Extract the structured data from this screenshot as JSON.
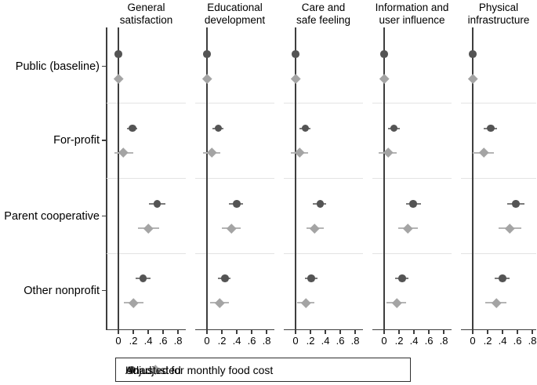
{
  "chart_data": {
    "type": "scatter",
    "subtype": "coefficient-forest-plot",
    "title": "",
    "xlabel": "",
    "ylabel": "",
    "grid": false,
    "legend_position": "bottom",
    "x_ticks": [
      0,
      0.2,
      0.4,
      0.6,
      0.8
    ],
    "x_tick_labels": [
      "0",
      ".2",
      ".4",
      ".6",
      ".8"
    ],
    "xlim": [
      -0.16,
      0.9
    ],
    "axis_color": "#3e3e3e",
    "separator_color": "#e3e3e3",
    "groups": [
      "Public (baseline)",
      "For-profit",
      "Parent cooperative",
      "Other nonprofit"
    ],
    "series": [
      {
        "name": "Unadjusted",
        "marker": "circle",
        "color": "#545454",
        "ci_color": "#7b7b7b"
      },
      {
        "name": "Adjusted for monthly food cost",
        "marker": "diamond",
        "color": "#a4a4a4",
        "ci_color": "#b5b5b5"
      }
    ],
    "panels": [
      {
        "label": "General\nsatisfaction",
        "groups": [
          {
            "group": "Public (baseline)",
            "unadjusted": {
              "est": 0,
              "lo": 0,
              "hi": 0
            },
            "adjusted": {
              "est": 0,
              "lo": 0,
              "hi": 0
            }
          },
          {
            "group": "For-profit",
            "unadjusted": {
              "est": 0.19,
              "lo": 0.12,
              "hi": 0.25
            },
            "adjusted": {
              "est": 0.07,
              "lo": -0.05,
              "hi": 0.2
            }
          },
          {
            "group": "Parent cooperative",
            "unadjusted": {
              "est": 0.52,
              "lo": 0.41,
              "hi": 0.63
            },
            "adjusted": {
              "est": 0.4,
              "lo": 0.26,
              "hi": 0.55
            }
          },
          {
            "group": "Other nonprofit",
            "unadjusted": {
              "est": 0.33,
              "lo": 0.23,
              "hi": 0.43
            },
            "adjusted": {
              "est": 0.2,
              "lo": 0.07,
              "hi": 0.34
            }
          }
        ]
      },
      {
        "label": "Educational\ndevelopment",
        "groups": [
          {
            "group": "Public (baseline)",
            "unadjusted": {
              "est": 0,
              "lo": 0,
              "hi": 0
            },
            "adjusted": {
              "est": 0,
              "lo": 0,
              "hi": 0
            }
          },
          {
            "group": "For-profit",
            "unadjusted": {
              "est": 0.15,
              "lo": 0.07,
              "hi": 0.22
            },
            "adjusted": {
              "est": 0.07,
              "lo": -0.05,
              "hi": 0.18
            }
          },
          {
            "group": "Parent cooperative",
            "unadjusted": {
              "est": 0.4,
              "lo": 0.29,
              "hi": 0.48
            },
            "adjusted": {
              "est": 0.33,
              "lo": 0.2,
              "hi": 0.45
            }
          },
          {
            "group": "Other nonprofit",
            "unadjusted": {
              "est": 0.24,
              "lo": 0.15,
              "hi": 0.32
            },
            "adjusted": {
              "est": 0.17,
              "lo": 0.04,
              "hi": 0.29
            }
          }
        ]
      },
      {
        "label": "Care and\nsafe feeling",
        "groups": [
          {
            "group": "Public (baseline)",
            "unadjusted": {
              "est": 0,
              "lo": 0,
              "hi": 0
            },
            "adjusted": {
              "est": 0,
              "lo": 0,
              "hi": 0
            }
          },
          {
            "group": "For-profit",
            "unadjusted": {
              "est": 0.13,
              "lo": 0.05,
              "hi": 0.2
            },
            "adjusted": {
              "est": 0.05,
              "lo": -0.06,
              "hi": 0.17
            }
          },
          {
            "group": "Parent cooperative",
            "unadjusted": {
              "est": 0.33,
              "lo": 0.23,
              "hi": 0.41
            },
            "adjusted": {
              "est": 0.26,
              "lo": 0.15,
              "hi": 0.38
            }
          },
          {
            "group": "Other nonprofit",
            "unadjusted": {
              "est": 0.21,
              "lo": 0.13,
              "hi": 0.29
            },
            "adjusted": {
              "est": 0.14,
              "lo": 0.02,
              "hi": 0.25
            }
          }
        ]
      },
      {
        "label": "Information and\nuser influence",
        "groups": [
          {
            "group": "Public (baseline)",
            "unadjusted": {
              "est": 0,
              "lo": 0,
              "hi": 0
            },
            "adjusted": {
              "est": 0,
              "lo": 0,
              "hi": 0
            }
          },
          {
            "group": "For-profit",
            "unadjusted": {
              "est": 0.13,
              "lo": 0.05,
              "hi": 0.21
            },
            "adjusted": {
              "est": 0.05,
              "lo": -0.07,
              "hi": 0.17
            }
          },
          {
            "group": "Parent cooperative",
            "unadjusted": {
              "est": 0.39,
              "lo": 0.29,
              "hi": 0.49
            },
            "adjusted": {
              "est": 0.32,
              "lo": 0.19,
              "hi": 0.45
            }
          },
          {
            "group": "Other nonprofit",
            "unadjusted": {
              "est": 0.24,
              "lo": 0.15,
              "hi": 0.33
            },
            "adjusted": {
              "est": 0.17,
              "lo": 0.03,
              "hi": 0.29
            }
          }
        ]
      },
      {
        "label": "Physical\ninfrastructure",
        "groups": [
          {
            "group": "Public (baseline)",
            "unadjusted": {
              "est": 0,
              "lo": 0,
              "hi": 0
            },
            "adjusted": {
              "est": 0,
              "lo": 0,
              "hi": 0
            }
          },
          {
            "group": "For-profit",
            "unadjusted": {
              "est": 0.24,
              "lo": 0.15,
              "hi": 0.33
            },
            "adjusted": {
              "est": 0.15,
              "lo": 0.0,
              "hi": 0.28
            }
          },
          {
            "group": "Parent cooperative",
            "unadjusted": {
              "est": 0.58,
              "lo": 0.46,
              "hi": 0.69
            },
            "adjusted": {
              "est": 0.5,
              "lo": 0.35,
              "hi": 0.65
            }
          },
          {
            "group": "Other nonprofit",
            "unadjusted": {
              "est": 0.4,
              "lo": 0.29,
              "hi": 0.5
            },
            "adjusted": {
              "est": 0.32,
              "lo": 0.17,
              "hi": 0.45
            }
          }
        ]
      }
    ]
  }
}
